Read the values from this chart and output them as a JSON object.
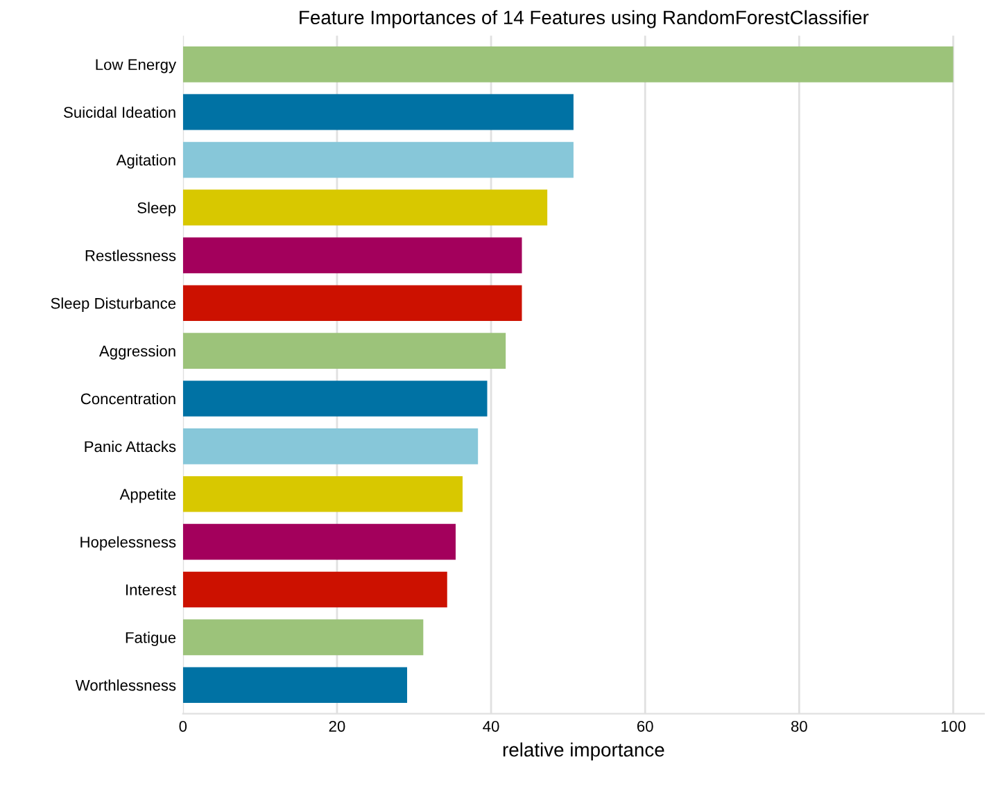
{
  "chart_data": {
    "type": "bar",
    "orientation": "horizontal",
    "title": "Feature Importances of 14 Features using RandomForestClassifier",
    "xlabel": "relative importance",
    "categories": [
      "Low Energy",
      "Suicidal Ideation",
      "Agitation",
      "Sleep",
      "Restlessness",
      "Sleep Disturbance",
      "Aggression",
      "Concentration",
      "Panic Attacks",
      "Appetite",
      "Hopelessness",
      "Interest",
      "Fatigue",
      "Worthlessness"
    ],
    "values": [
      100,
      50.7,
      50.7,
      47.3,
      44.0,
      44.0,
      41.9,
      39.5,
      38.3,
      36.3,
      35.4,
      34.3,
      31.2,
      29.1
    ],
    "colors": [
      "#9cc37a",
      "#0072a4",
      "#87c7d9",
      "#d8c800",
      "#a3005c",
      "#cc1100",
      "#9cc37a",
      "#0072a4",
      "#87c7d9",
      "#d8c800",
      "#a3005c",
      "#cc1100",
      "#9cc37a",
      "#0072a4"
    ],
    "xlim": [
      0,
      104
    ],
    "xticks": [
      0,
      20,
      40,
      60,
      80,
      100
    ],
    "grid": "x"
  }
}
